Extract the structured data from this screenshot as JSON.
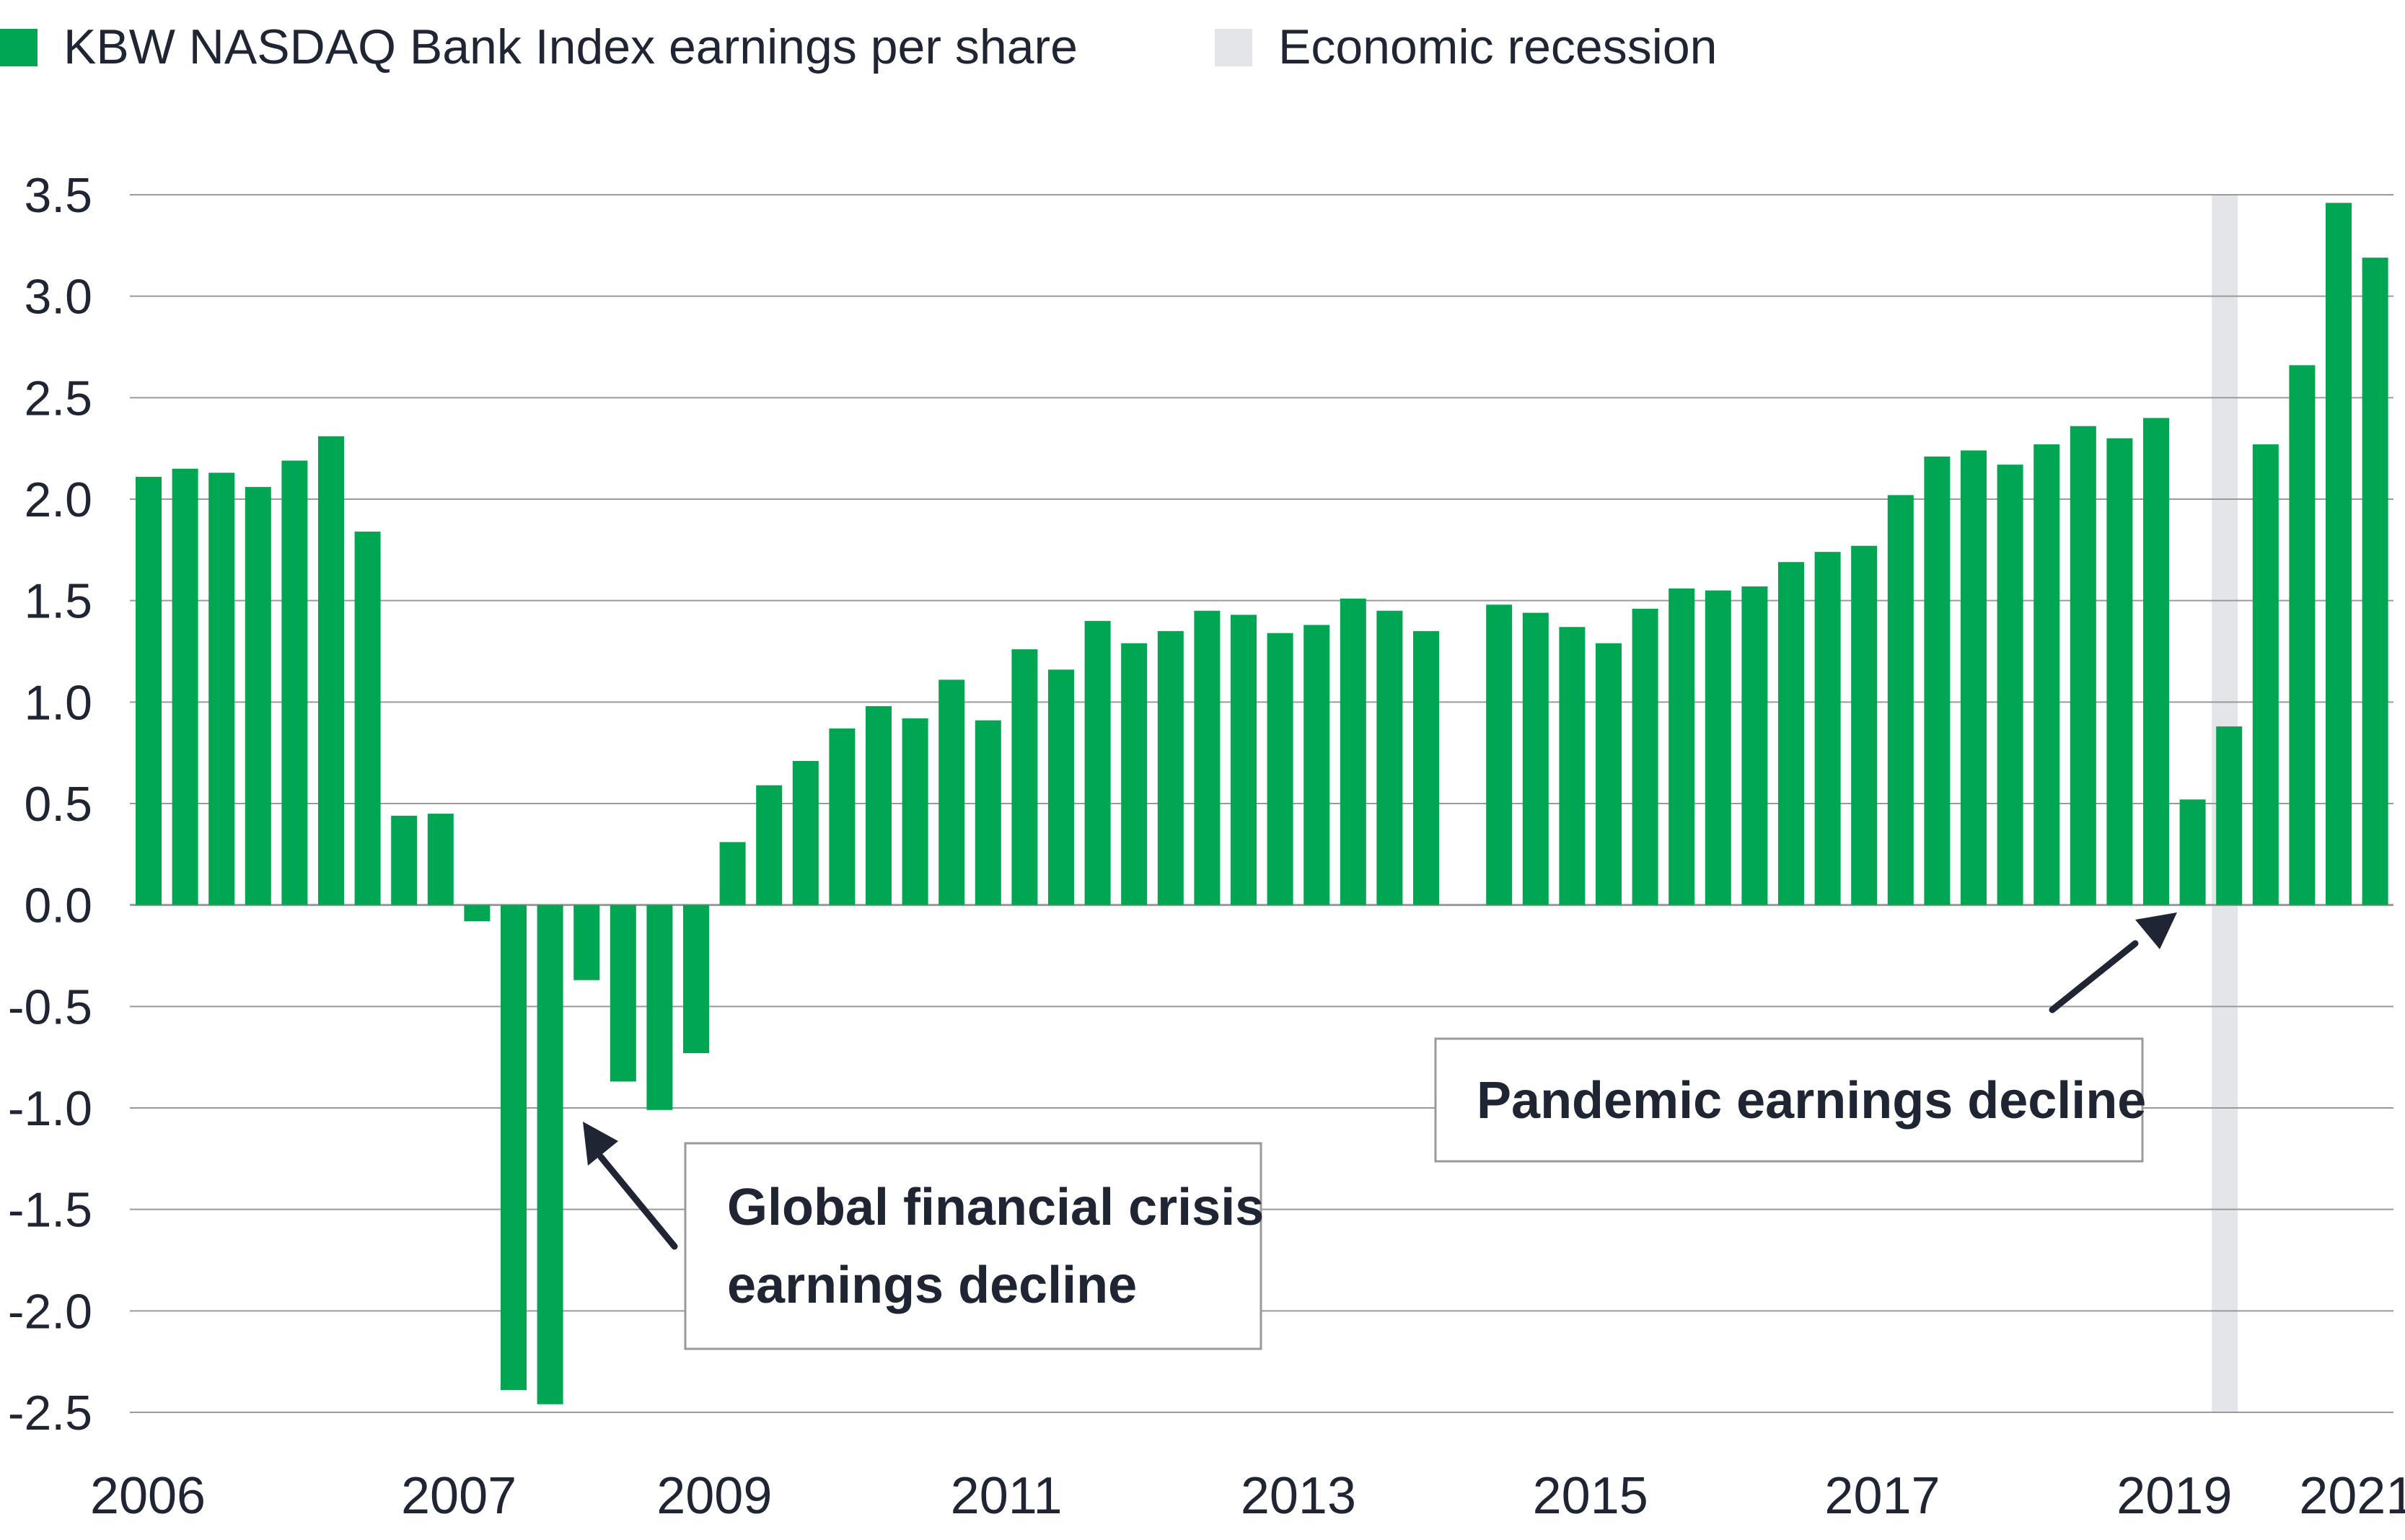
{
  "legend": {
    "eps_label": "KBW NASDAQ Bank Index earnings per share",
    "recession_label": "Economic recession"
  },
  "annotations": {
    "gfc_line1": "Global financial crisis",
    "gfc_line2": "earnings decline",
    "pandemic": "Pandemic earnings decline"
  },
  "colors": {
    "bar": "#00A651",
    "recession": "#E4E5E9",
    "grid": "#9A9A9A",
    "text": "#1F2533",
    "arrow": "#1F2533",
    "box_border": "#9A9A9A"
  },
  "chart_data": {
    "type": "bar",
    "title": "",
    "xlabel": "",
    "ylabel": "",
    "ylim": [
      -2.5,
      3.5
    ],
    "yticks": [
      "3.5",
      "3.0",
      "2.5",
      "2.0",
      "1.5",
      "1.0",
      "0.5",
      "0.0",
      "-0.5",
      "-1.0",
      "-1.5",
      "-2.0",
      "-2.5"
    ],
    "ytick_values": [
      3.5,
      3.0,
      2.5,
      2.0,
      1.5,
      1.0,
      0.5,
      0.0,
      -0.5,
      -1.0,
      -1.5,
      -2.0,
      -2.5
    ],
    "grid": true,
    "legend_position": "top-left",
    "xtick_labels": [
      {
        "label": "2006",
        "slot": 0
      },
      {
        "label": "2007",
        "slot": 8.5
      },
      {
        "label": "2009",
        "slot": 15.5
      },
      {
        "label": "2011",
        "slot": 23.5
      },
      {
        "label": "2013",
        "slot": 31.5
      },
      {
        "label": "2015",
        "slot": 39.5
      },
      {
        "label": "2017",
        "slot": 47.5
      },
      {
        "label": "2019",
        "slot": 55.5
      },
      {
        "label": "2021",
        "slot": 60.5
      }
    ],
    "series": [
      {
        "values": [
          2.11,
          2.15,
          2.13,
          2.06,
          2.19,
          2.31,
          1.84,
          0.44,
          0.45,
          -0.08,
          -2.39,
          -2.46,
          -0.37,
          -0.87,
          -1.01,
          -0.73,
          0.31,
          0.59,
          0.71,
          0.87,
          0.98,
          0.92,
          1.11,
          0.91,
          1.26,
          1.16,
          1.4,
          1.29,
          1.35,
          1.45,
          1.43,
          1.34,
          1.38,
          1.51,
          1.45,
          1.35,
          null,
          1.48,
          1.44,
          1.37,
          1.29,
          1.46,
          1.56,
          1.55,
          1.57,
          1.69,
          1.74,
          1.77,
          2.02,
          2.21,
          2.24,
          2.17,
          2.27,
          2.36,
          2.3,
          2.4,
          0.52,
          0.88,
          2.27,
          2.66,
          3.46,
          3.19
        ]
      }
    ],
    "recession_slot": 57
  }
}
